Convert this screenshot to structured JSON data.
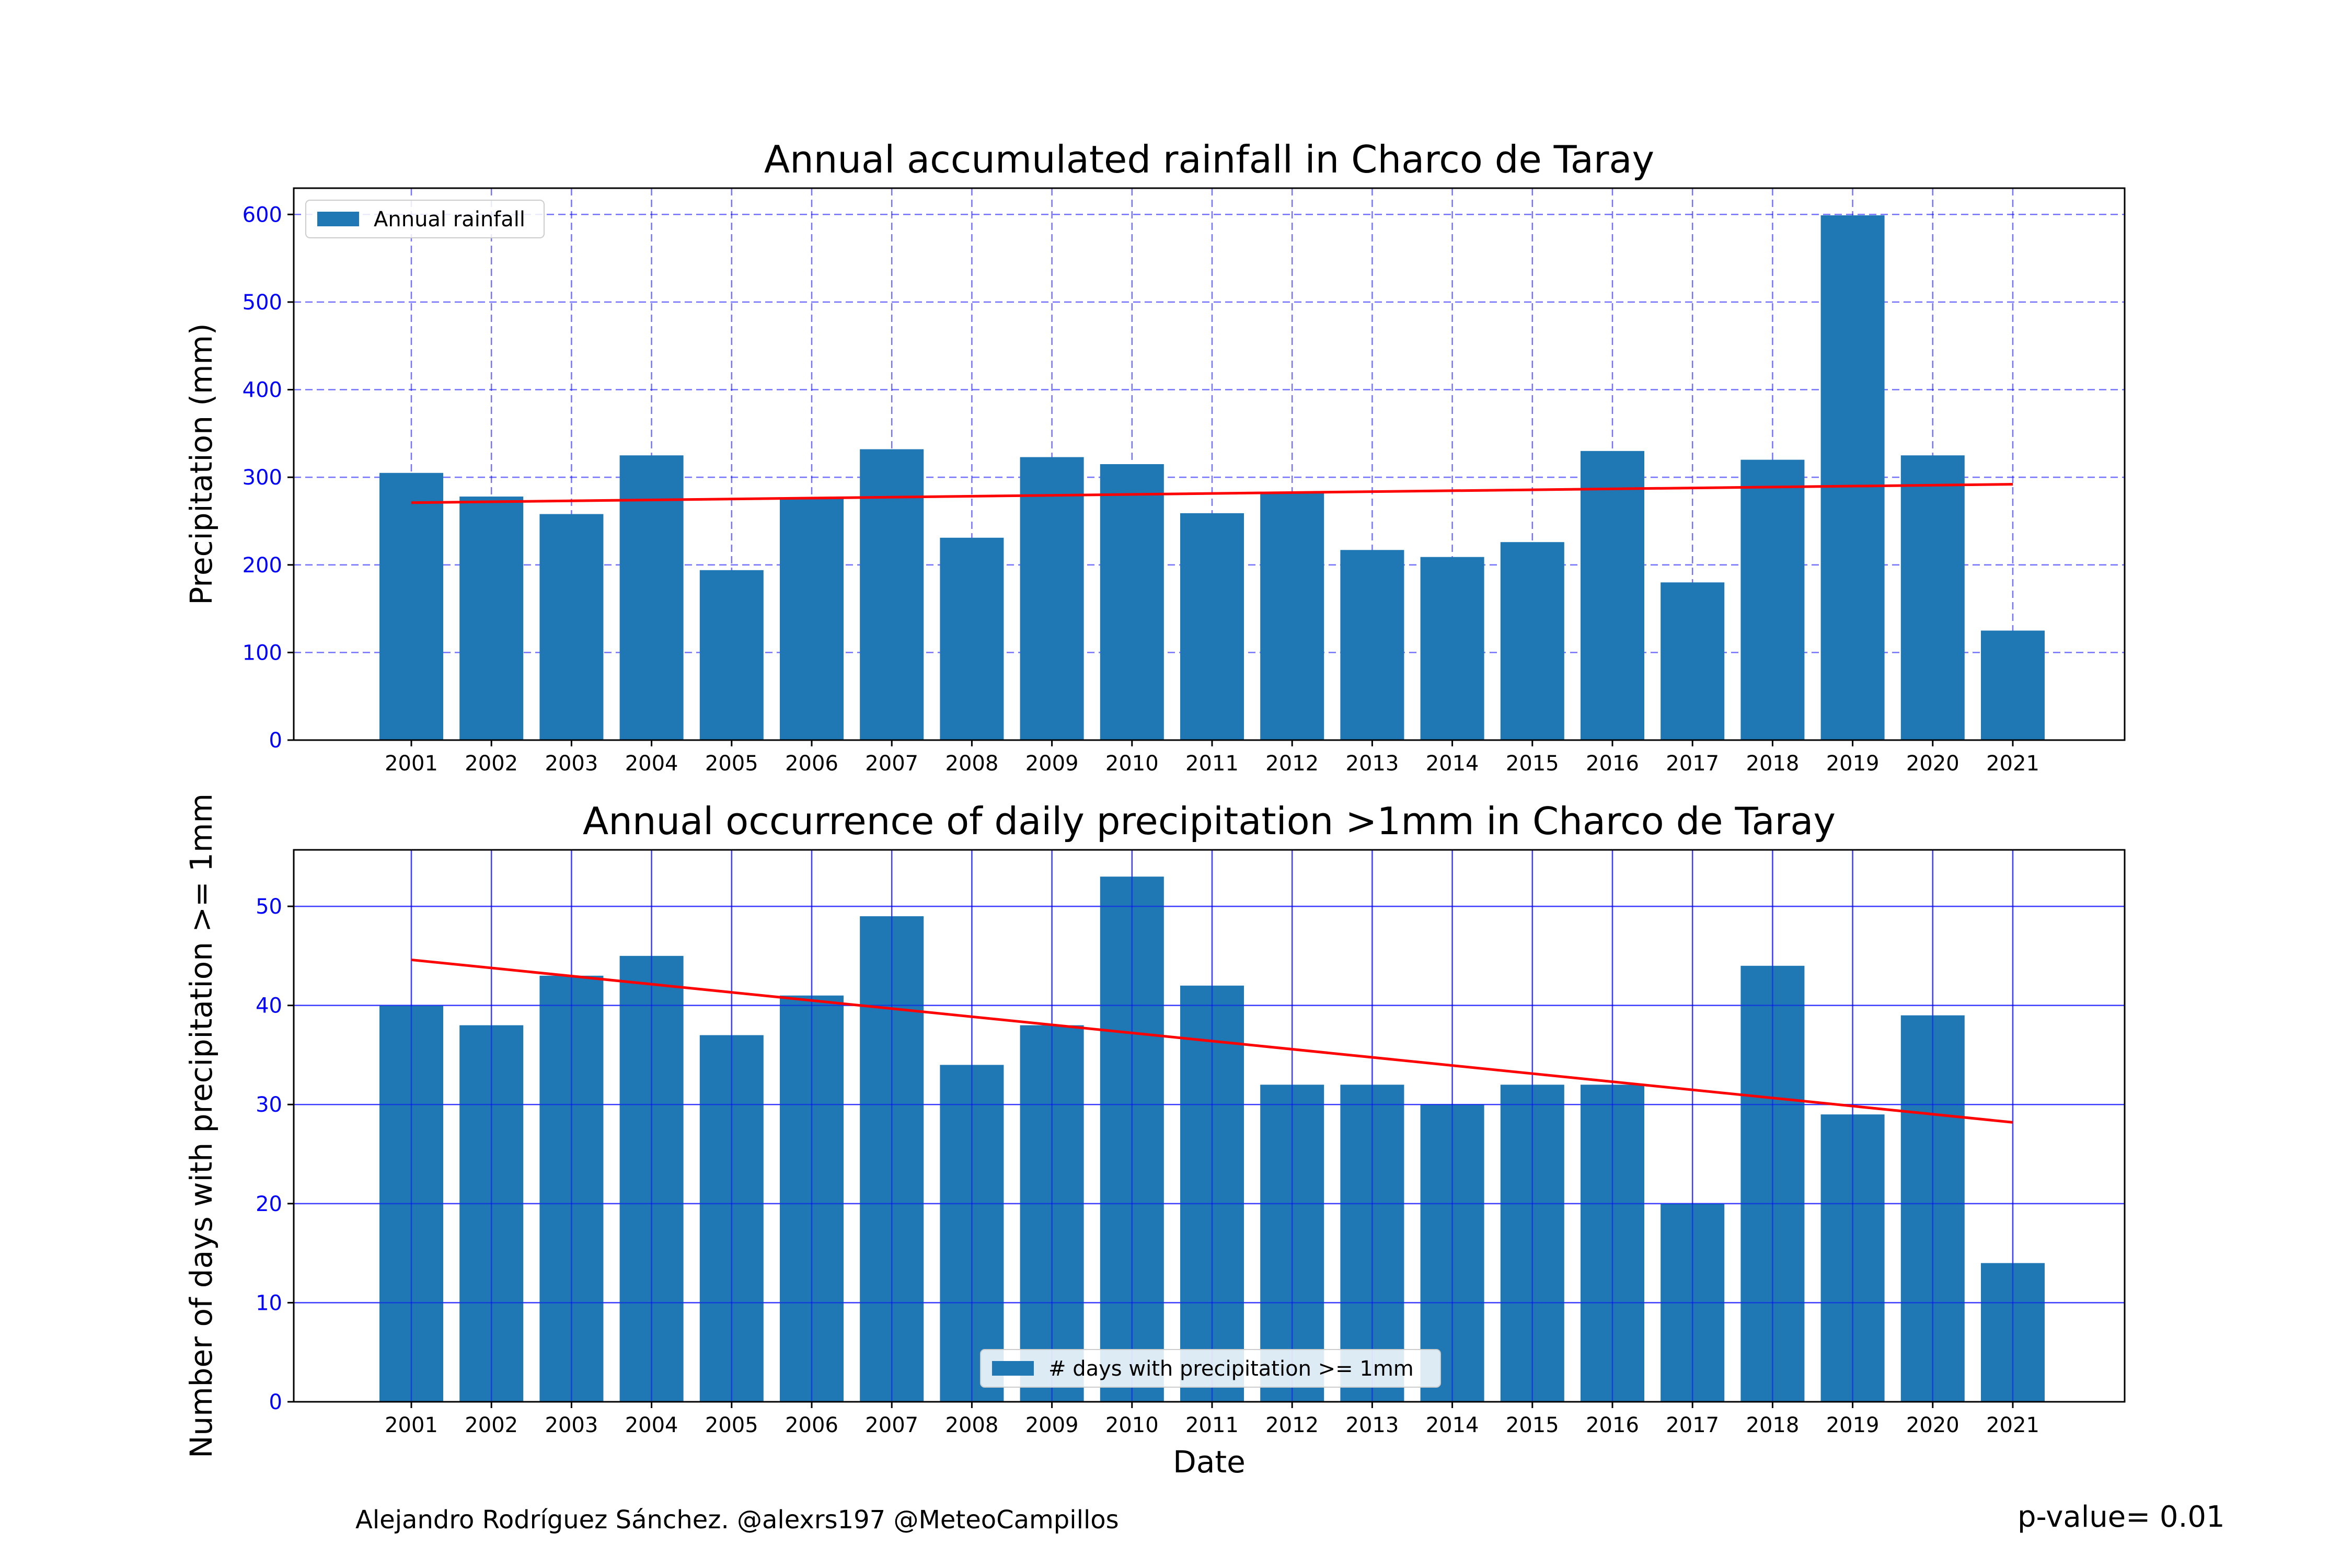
{
  "footer": {
    "credit": "Alejandro Rodríguez Sánchez. @alexrs197 @MeteoCampillos",
    "pvalue": "p-value= 0.01"
  },
  "colors": {
    "bar": "#1f77b4",
    "trend": "#ff0000",
    "grid": "#0000ff",
    "ytick": "#0000ff"
  },
  "chart_data": [
    {
      "type": "bar",
      "title": "Annual accumulated rainfall in Charco de Taray",
      "xlabel": "",
      "ylabel": "Precipitation (mm)",
      "categories": [
        "2001",
        "2002",
        "2003",
        "2004",
        "2005",
        "2006",
        "2007",
        "2008",
        "2009",
        "2010",
        "2011",
        "2012",
        "2013",
        "2014",
        "2015",
        "2016",
        "2017",
        "2018",
        "2019",
        "2020",
        "2021"
      ],
      "series": [
        {
          "name": "Annual rainfall",
          "values": [
            305,
            278,
            258,
            325,
            194,
            276,
            332,
            231,
            323,
            315,
            259,
            282,
            217,
            209,
            226,
            330,
            180,
            320,
            599,
            325,
            125
          ]
        }
      ],
      "trend": {
        "start": 271,
        "end": 292
      },
      "ylim": [
        0,
        630
      ],
      "yticks": [
        0,
        100,
        200,
        300,
        400,
        500,
        600
      ],
      "grid": "dashed",
      "legend": "upper-left"
    },
    {
      "type": "bar",
      "title": "Annual occurrence of daily precipitation >1mm in Charco de Taray",
      "xlabel": "Date",
      "ylabel": "Number of days with precipitation >= 1mm",
      "categories": [
        "2001",
        "2002",
        "2003",
        "2004",
        "2005",
        "2006",
        "2007",
        "2008",
        "2009",
        "2010",
        "2011",
        "2012",
        "2013",
        "2014",
        "2015",
        "2016",
        "2017",
        "2018",
        "2019",
        "2020",
        "2021"
      ],
      "series": [
        {
          "name": "# days with precipitation >= 1mm",
          "values": [
            40,
            38,
            43,
            45,
            37,
            41,
            49,
            34,
            38,
            53,
            42,
            32,
            32,
            30,
            32,
            32,
            20,
            44,
            29,
            39,
            14
          ]
        }
      ],
      "trend": {
        "start": 44.6,
        "end": 28.2
      },
      "ylim": [
        0,
        55.7
      ],
      "yticks": [
        0,
        10,
        20,
        30,
        40,
        50
      ],
      "grid": "solid",
      "legend": "lower-center"
    }
  ]
}
